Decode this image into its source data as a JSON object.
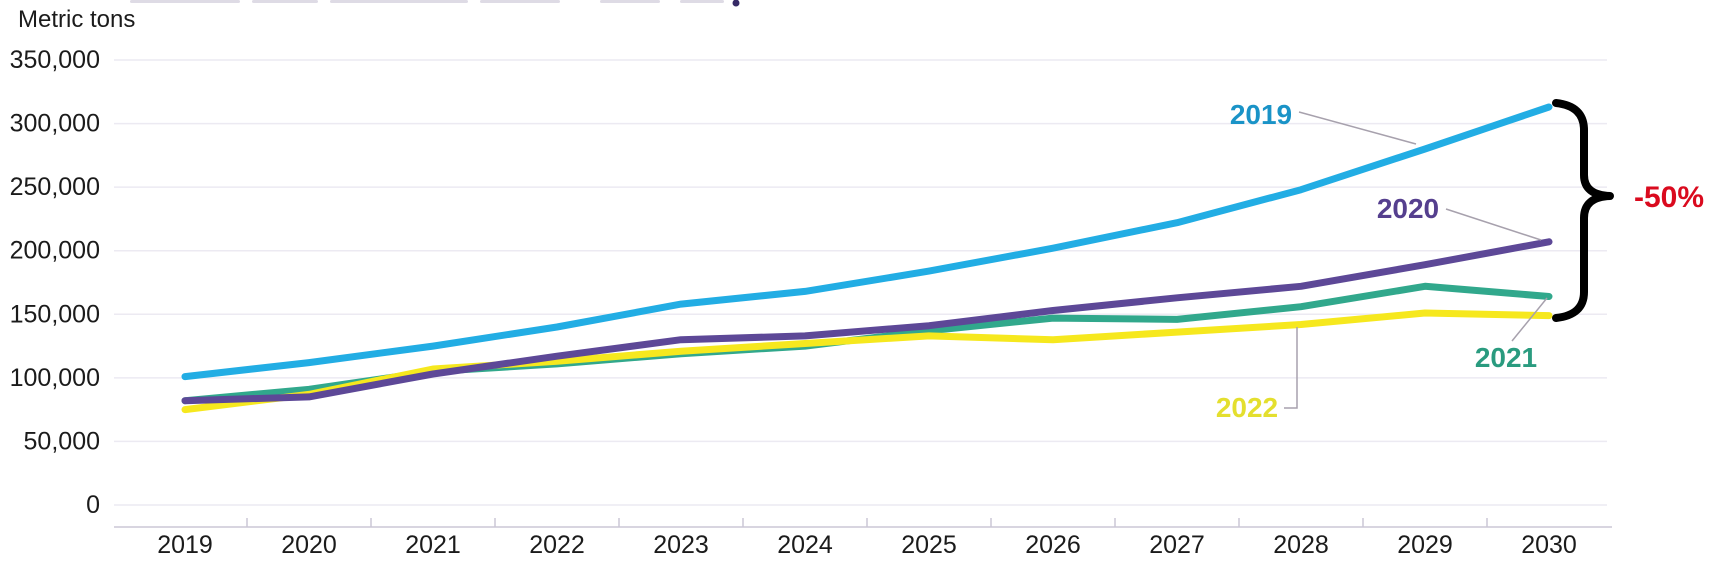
{
  "page": {
    "y_axis_title": "Metric tons"
  },
  "chart_data": {
    "type": "line",
    "title": "",
    "ylabel": "Metric tons",
    "xlabel": "",
    "categories": [
      "2019",
      "2020",
      "2021",
      "2022",
      "2023",
      "2024",
      "2025",
      "2026",
      "2027",
      "2028",
      "2029",
      "2030"
    ],
    "ylim": [
      0,
      350000
    ],
    "grid": "horizontal",
    "legend_position": "inline-labels",
    "y_ticks": {
      "values": [
        0,
        50000,
        100000,
        150000,
        200000,
        250000,
        300000,
        350000
      ],
      "labels": [
        "0",
        "50,000",
        "100,000",
        "150,000",
        "200,000",
        "250,000",
        "300,000",
        "350,000"
      ]
    },
    "series": [
      {
        "name": "2019",
        "color": "#22ade4",
        "label_color": "#1a93c7",
        "values": [
          101000,
          112000,
          125000,
          140000,
          158000,
          168000,
          184000,
          202000,
          222000,
          248000,
          280000,
          313000
        ]
      },
      {
        "name": "2020",
        "color": "#5d4897",
        "label_color": "#553f8e",
        "values": [
          82000,
          85000,
          103000,
          117000,
          130000,
          133000,
          141000,
          153000,
          163000,
          172000,
          189000,
          207000
        ]
      },
      {
        "name": "2021",
        "color": "#31a88c",
        "label_color": "#2a9b7f",
        "values": [
          82000,
          91000,
          105000,
          111000,
          119000,
          125000,
          137000,
          147000,
          146000,
          156000,
          172000,
          164000
        ]
      },
      {
        "name": "2022",
        "color": "#f6e81e",
        "label_color": "#e4df2e",
        "values": [
          75000,
          87000,
          107000,
          113000,
          121000,
          127000,
          133000,
          130000,
          136000,
          142000,
          151000,
          149000
        ]
      }
    ],
    "annotation": {
      "text": "-50%",
      "color": "#da0a1e"
    }
  }
}
